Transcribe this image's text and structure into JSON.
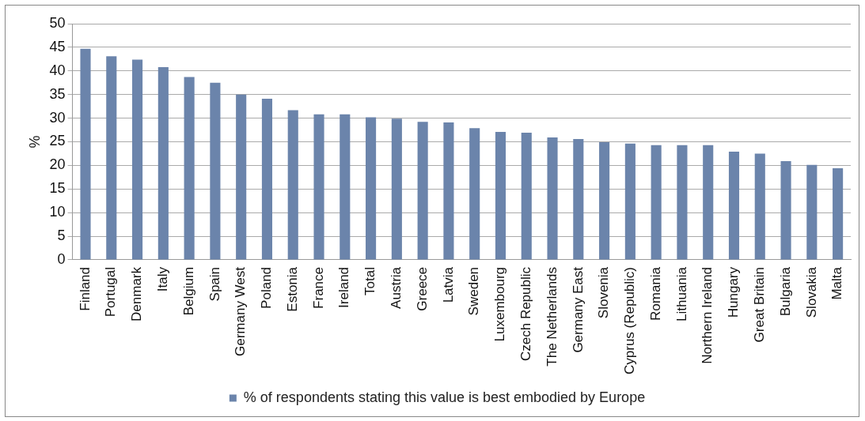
{
  "chart_data": {
    "type": "bar",
    "ylabel": "%",
    "categories": [
      "Finland",
      "Portugal",
      "Denmark",
      "Italy",
      "Belgium",
      "Spain",
      "Germany West",
      "Poland",
      "Estonia",
      "France",
      "Ireland",
      "Total",
      "Austria",
      "Greece",
      "Latvia",
      "Sweden",
      "Luxembourg",
      "Czech Republic",
      "The Netherlands",
      "Germany East",
      "Slovenia",
      "Cyprus (Republic)",
      "Romania",
      "Lithuania",
      "Northern Ireland",
      "Hungary",
      "Great Britain",
      "Bulgaria",
      "Slovakia",
      "Malta"
    ],
    "series": [
      {
        "name": "% of respondents stating this value is best embodied by Europe",
        "color": "#6b84ab",
        "values": [
          44.7,
          43.1,
          42.4,
          40.8,
          38.7,
          37.5,
          35.0,
          34.1,
          31.7,
          30.8,
          30.8,
          30.2,
          29.9,
          29.2,
          29.1,
          27.9,
          27.1,
          26.9,
          25.9,
          25.6,
          24.9,
          24.6,
          24.3,
          24.3,
          24.3,
          22.9,
          22.5,
          20.9,
          20.1,
          19.4
        ]
      }
    ],
    "ylim": [
      0,
      50
    ],
    "yticks": [
      0,
      5,
      10,
      15,
      20,
      25,
      30,
      35,
      40,
      45,
      50
    ],
    "grid": "y",
    "legend": "bottom"
  }
}
